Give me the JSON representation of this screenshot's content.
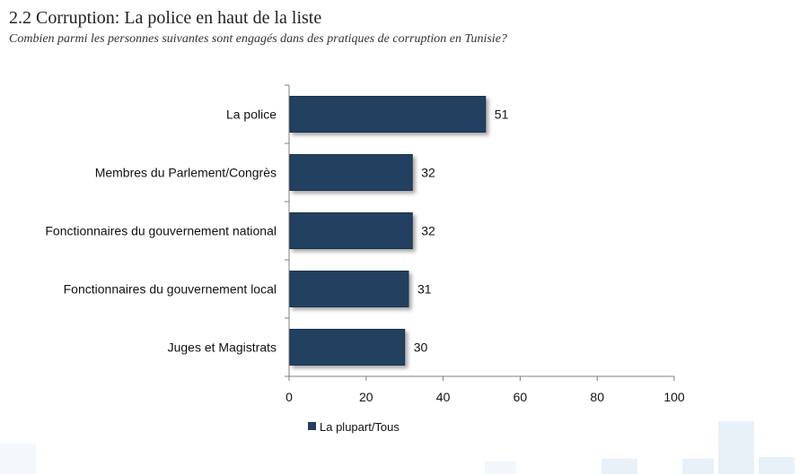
{
  "title": "2.2 Corruption: La police en haut de la liste",
  "subtitle": "Combien parmi les personnes suivantes sont engagés dans des pratiques de corruption en Tunisie?",
  "colors": {
    "bar": "#243f60",
    "axis": "#7f7f7f"
  },
  "chart_data": {
    "type": "bar",
    "orientation": "horizontal",
    "categories": [
      "La police",
      "Membres du Parlement/Congrès",
      "Fonctionnaires du gouvernement national",
      "Fonctionnaires du gouvernement local",
      "Juges et Magistrats"
    ],
    "series": [
      {
        "name": "La plupart/Tous",
        "values": [
          51,
          32,
          32,
          31,
          30
        ]
      }
    ],
    "xlim": [
      0,
      100
    ],
    "xticks": [
      0,
      20,
      40,
      60,
      80,
      100
    ],
    "grid": false,
    "legend_position": "bottom"
  }
}
